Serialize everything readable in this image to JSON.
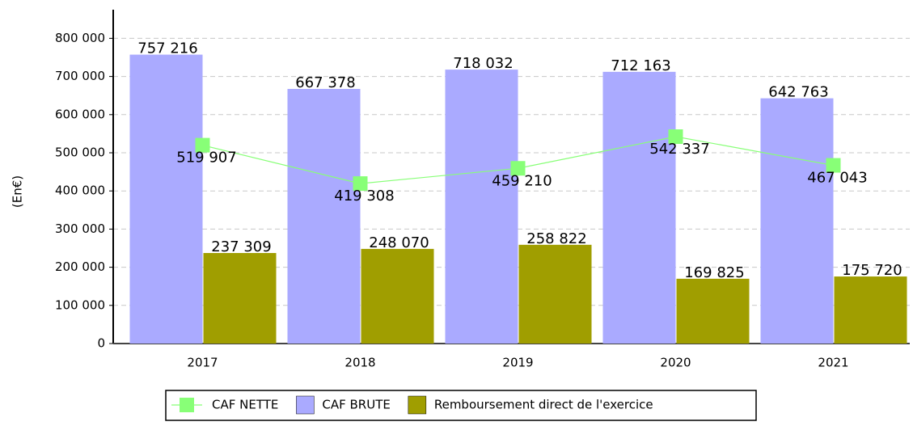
{
  "chart_data": {
    "type": "bar",
    "y_label": "(En€)",
    "categories": [
      "2017",
      "2018",
      "2019",
      "2020",
      "2021"
    ],
    "series": [
      {
        "name": "CAF NETTE",
        "type": "line",
        "color": "#88ff77",
        "values": [
          519907,
          419308,
          459210,
          542337,
          467043
        ],
        "value_labels": [
          "519 907",
          "419 308",
          "459 210",
          "542 337",
          "467 043"
        ]
      },
      {
        "name": "CAF BRUTE",
        "type": "bar",
        "color": "#aaaaff",
        "values": [
          757216,
          667378,
          718032,
          712163,
          642763
        ],
        "value_labels": [
          "757 216",
          "667 378",
          "718 032",
          "712 163",
          "642 763"
        ]
      },
      {
        "name": "Remboursement direct de l'exercice",
        "type": "bar",
        "color": "#a09e00",
        "values": [
          237309,
          248070,
          258822,
          169825,
          175720
        ],
        "value_labels": [
          "237 309",
          "248 070",
          "258 822",
          "169 825",
          "175 720"
        ]
      }
    ],
    "ylim": [
      0,
      875000
    ],
    "yticks": [
      0,
      {
        "value": 100000,
        "label": "100 000"
      },
      {
        "value": 200000,
        "label": "200 000"
      },
      {
        "value": 300000,
        "label": "300 000"
      },
      {
        "value": 400000,
        "label": "400 000"
      },
      {
        "value": 500000,
        "label": "500 000"
      },
      {
        "value": 600000,
        "label": "600 000"
      },
      {
        "value": 700000,
        "label": "700 000"
      },
      {
        "value": 800000,
        "label": "800 000"
      }
    ],
    "grid": true,
    "legend": "bottom"
  }
}
